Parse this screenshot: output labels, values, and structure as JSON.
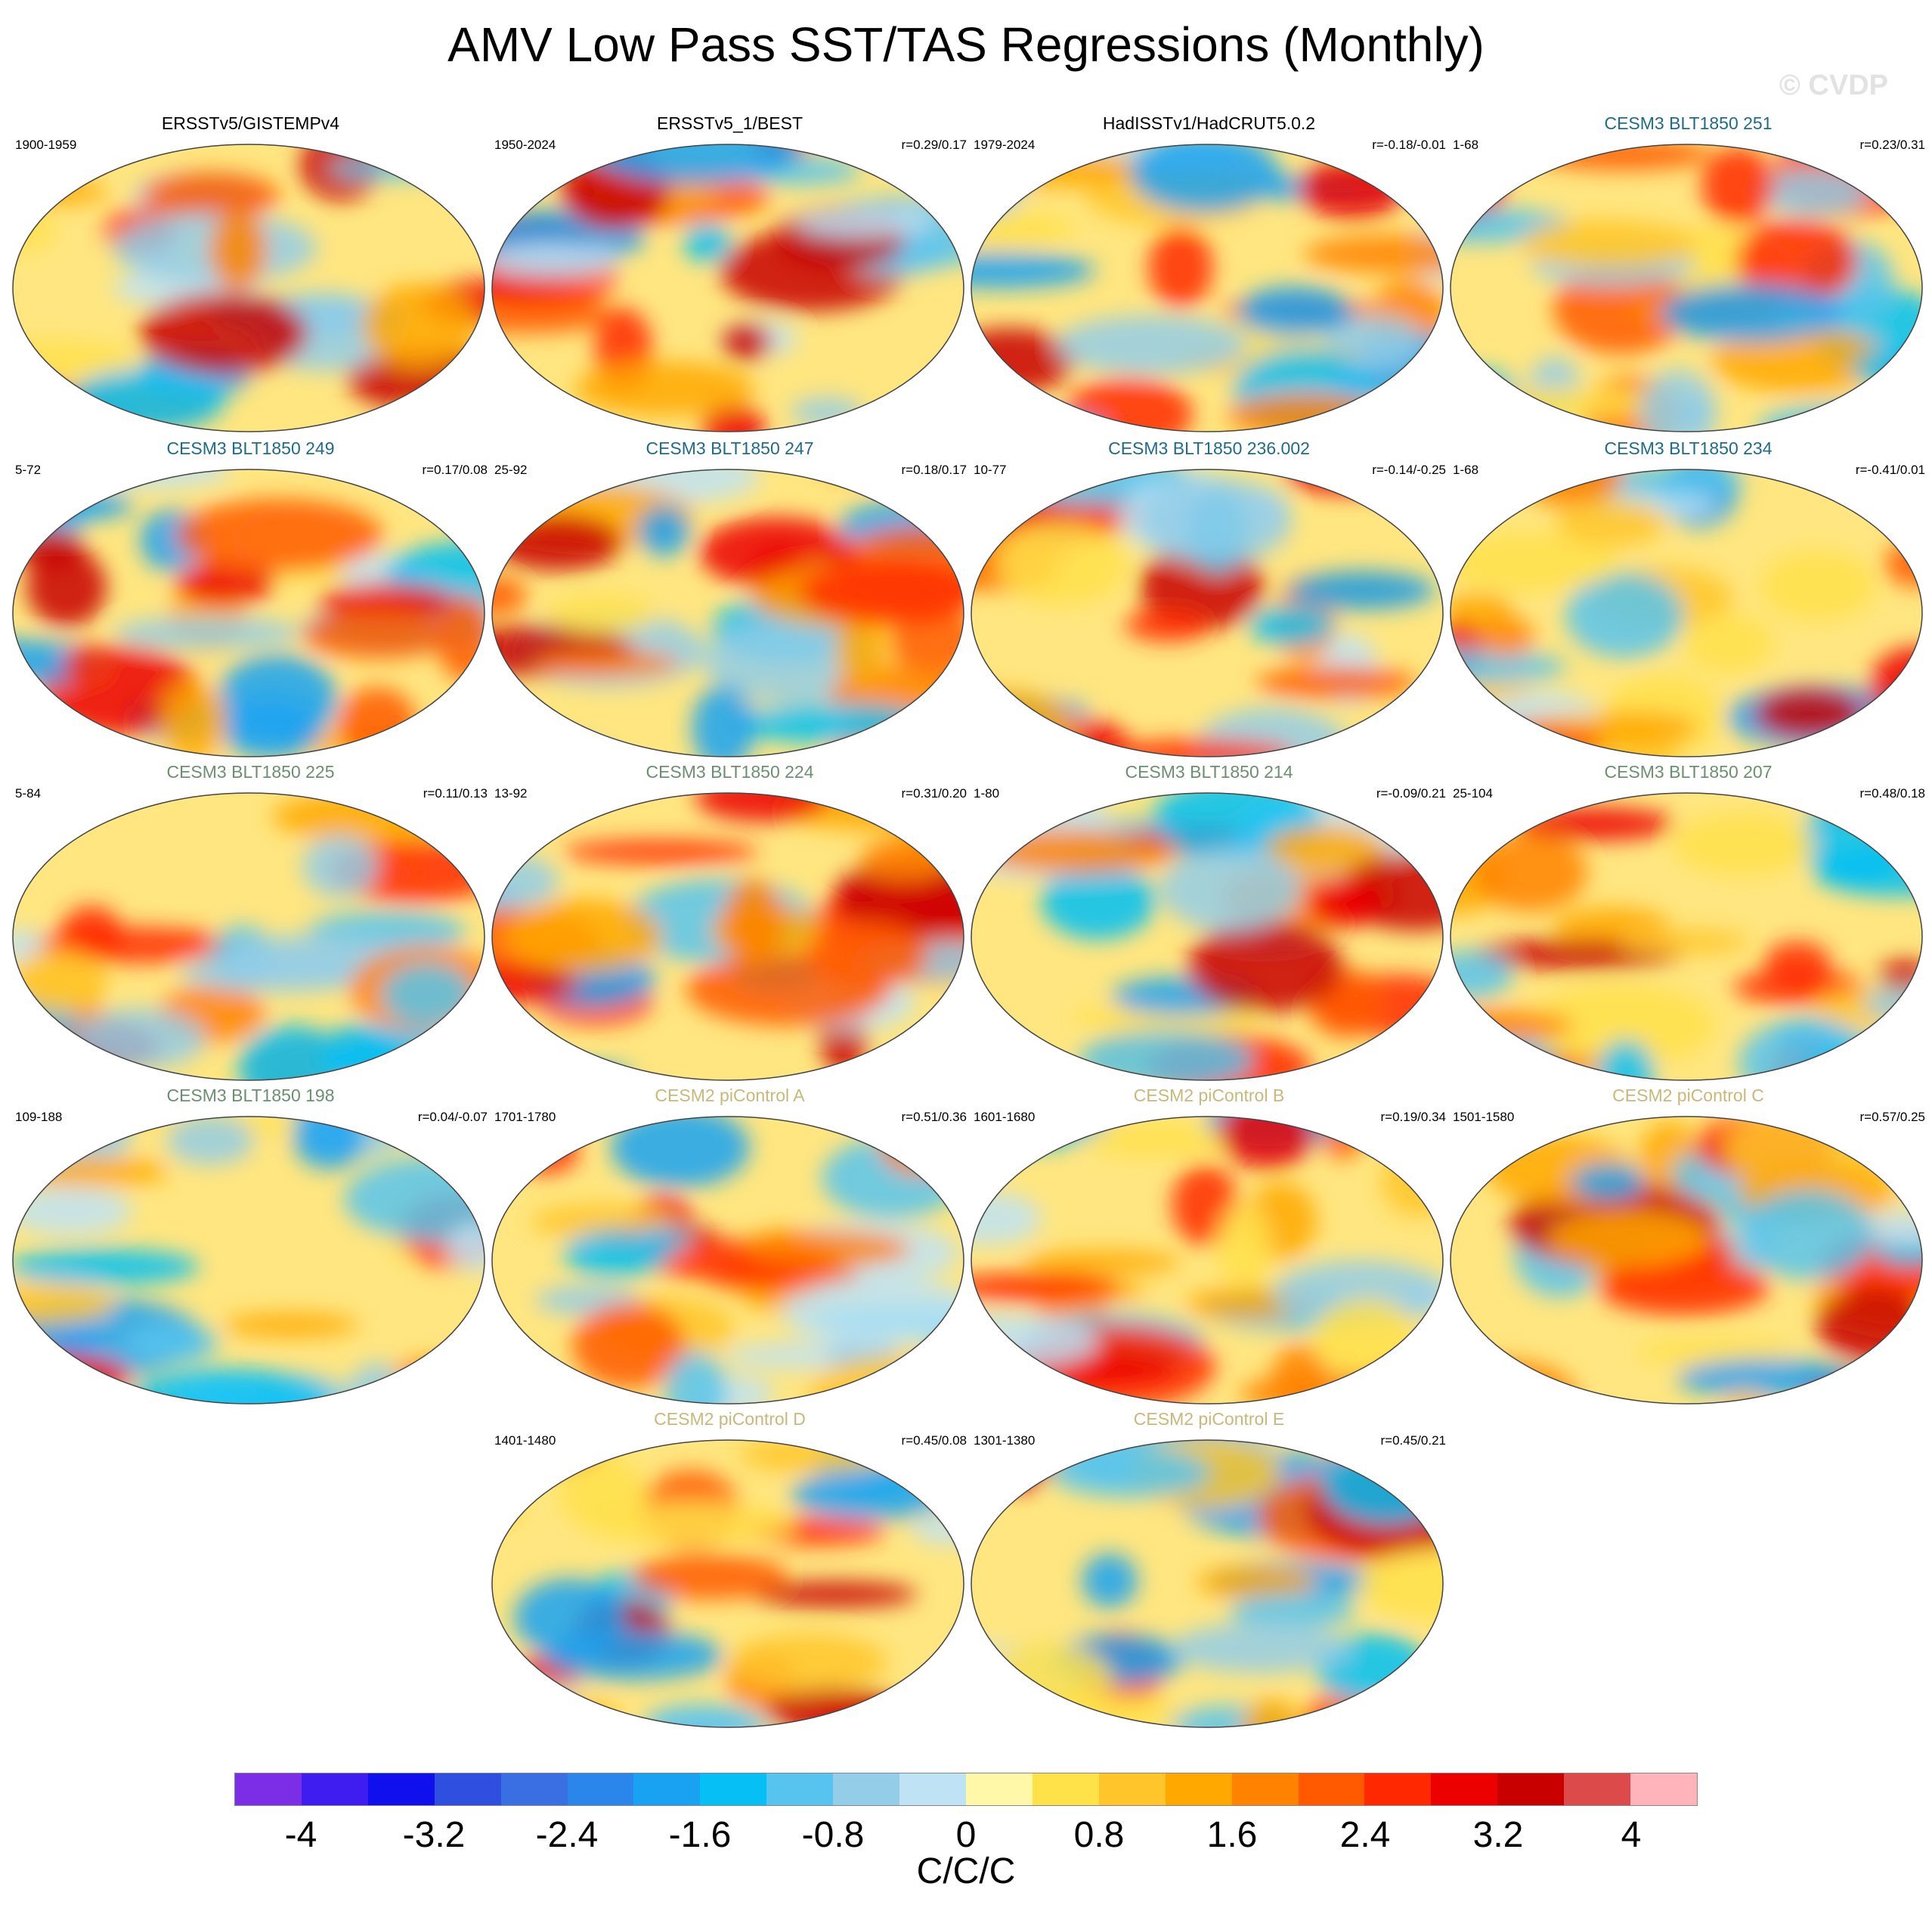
{
  "title": "AMV Low Pass SST/TAS Regressions (Monthly)",
  "watermark": "© CVDP",
  "units": "C/C/C",
  "colorbar": {
    "colors": [
      "#7b2ee6",
      "#3f1cf0",
      "#1010ee",
      "#2f4fe0",
      "#3a6fe3",
      "#2a86ea",
      "#1aa2f2",
      "#05bff5",
      "#57c4ef",
      "#94cde8",
      "#bfe3f4",
      "#fff8a8",
      "#ffe14a",
      "#ffc52a",
      "#ffa800",
      "#ff8200",
      "#ff5a00",
      "#ff2800",
      "#ec0000",
      "#c80000",
      "#dc4a4a",
      "#ffb3bb"
    ],
    "tick_labels": [
      "-4",
      "-3.2",
      "-2.4",
      "-1.6",
      "-0.8",
      "0",
      "0.8",
      "1.6",
      "2.4",
      "3.2",
      "4"
    ]
  },
  "panels": [
    {
      "title": "ERSSTv5/GISTEMPv4",
      "title_color": "#000000",
      "years": "1900-1959",
      "r": ""
    },
    {
      "title": "ERSSTv5_1/BEST",
      "title_color": "#000000",
      "years": "1950-2024",
      "r": "r=0.29/0.17"
    },
    {
      "title": "HadISSTv1/HadCRUT5.0.2",
      "title_color": "#000000",
      "years": "1979-2024",
      "r": "r=-0.18/-0.01"
    },
    {
      "title": "CESM3 BLT1850 251",
      "title_color": "#1f6b8c",
      "years": "1-68",
      "r": "r=0.23/0.31"
    },
    {
      "title": "CESM3 BLT1850 249",
      "title_color": "#1f6b8c",
      "years": "5-72",
      "r": "r=0.17/0.08"
    },
    {
      "title": "CESM3 BLT1850 247",
      "title_color": "#1f6b8c",
      "years": "25-92",
      "r": "r=0.18/0.17"
    },
    {
      "title": "CESM3 BLT1850 236.002",
      "title_color": "#1f6b8c",
      "years": "10-77",
      "r": "r=-0.14/-0.25"
    },
    {
      "title": "CESM3 BLT1850 234",
      "title_color": "#1f6b8c",
      "years": "1-68",
      "r": "r=-0.41/0.01"
    },
    {
      "title": "CESM3 BLT1850 225",
      "title_color": "#6a9070",
      "years": "5-84",
      "r": "r=0.11/0.13"
    },
    {
      "title": "CESM3 BLT1850 224",
      "title_color": "#6a9070",
      "years": "13-92",
      "r": "r=0.31/0.20"
    },
    {
      "title": "CESM3 BLT1850 214",
      "title_color": "#6a9070",
      "years": "1-80",
      "r": "r=-0.09/0.21"
    },
    {
      "title": "CESM3 BLT1850 207",
      "title_color": "#6a9070",
      "years": "25-104",
      "r": "r=0.48/0.18"
    },
    {
      "title": "CESM3 BLT1850 198",
      "title_color": "#6a9070",
      "years": "109-188",
      "r": "r=0.04/-0.07"
    },
    {
      "title": "CESM2 piControl A",
      "title_color": "#c9b878",
      "years": "1701-1780",
      "r": "r=0.51/0.36"
    },
    {
      "title": "CESM2 piControl B",
      "title_color": "#c9b878",
      "years": "1601-1680",
      "r": "r=0.19/0.34"
    },
    {
      "title": "CESM2 piControl C",
      "title_color": "#c9b878",
      "years": "1501-1580",
      "r": "r=0.57/0.25"
    },
    {
      "title": "CESM2 piControl D",
      "title_color": "#c9b878",
      "years": "1401-1480",
      "r": "r=0.45/0.08"
    },
    {
      "title": "CESM2 piControl E",
      "title_color": "#c9b878",
      "years": "1301-1380",
      "r": "r=0.45/0.21"
    }
  ]
}
